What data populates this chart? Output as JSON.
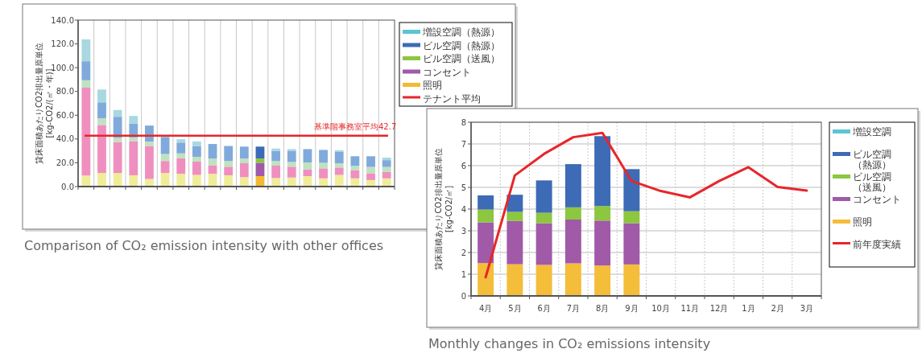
{
  "chart_data": [
    {
      "type": "bar",
      "stacked": true,
      "categories": [
        null,
        null,
        null,
        null,
        null,
        null,
        null,
        null,
        null,
        null,
        null,
        null,
        null,
        null,
        null,
        null,
        null,
        null,
        null,
        null
      ],
      "series": [
        {
          "name": "照明",
          "color": "#f4b932",
          "colors": [
            "#f0ec9a",
            "#f0ec9a",
            "#f0ec9a",
            "#f0ec9a",
            "#f0ec9a",
            "#f0ec9a",
            "#f0ec9a",
            "#f0ec9a",
            "#f0ec9a",
            "#f0ec9a",
            "#f0ec9a",
            "#f4b932",
            "#f0ec9a",
            "#f0ec9a",
            "#f0ec9a",
            "#f0ec9a",
            "#f0ec9a",
            "#f0ec9a",
            "#f0ec9a",
            "#f0ec9a"
          ],
          "values": [
            9.3,
            11.4,
            11.4,
            9.5,
            6.4,
            11.4,
            10.7,
            9.8,
            10.7,
            9.5,
            7.9,
            8.8,
            7.2,
            7.6,
            8.8,
            6.9,
            9.8,
            6.9,
            5.5,
            6.9
          ]
        },
        {
          "name": "コンセント",
          "color": "#a05aa8",
          "colors": [
            "#ef8fbf",
            "#ef8fbf",
            "#ef8fbf",
            "#ef8fbf",
            "#ef8fbf",
            "#ef8fbf",
            "#ef8fbf",
            "#ef8fbf",
            "#ef8fbf",
            "#ef8fbf",
            "#ef8fbf",
            "#a05aa8",
            "#ef8fbf",
            "#ef8fbf",
            "#ef8fbf",
            "#ef8fbf",
            "#ef8fbf",
            "#ef8fbf",
            "#ef8fbf",
            "#ef8fbf"
          ],
          "values": [
            73.9,
            40.4,
            26.0,
            28.7,
            27.7,
            10.1,
            13.1,
            11.2,
            7.2,
            7.2,
            11.7,
            11.2,
            10.4,
            9.1,
            5.7,
            8.4,
            6.2,
            6.9,
            5.7,
            5.5
          ]
        },
        {
          "name": "ビル空調（送風）",
          "color": "#8dc63f",
          "colors": [
            "#bfe2c0",
            "#bfe2c0",
            "#bfe2c0",
            "#bfe2c0",
            "#bfe2c0",
            "#bfe2c0",
            "#bfe2c0",
            "#bfe2c0",
            "#bfe2c0",
            "#bfe2c0",
            "#bfe2c0",
            "#8dc63f",
            "#bfe2c0",
            "#bfe2c0",
            "#bfe2c0",
            "#bfe2c0",
            "#bfe2c0",
            "#bfe2c0",
            "#bfe2c0",
            "#bfe2c0"
          ],
          "values": [
            6.2,
            5.7,
            3.6,
            3.1,
            3.8,
            5.9,
            4.1,
            4.0,
            5.7,
            4.8,
            4.0,
            3.6,
            3.9,
            4.0,
            5.8,
            4.7,
            3.6,
            3.6,
            5.3,
            4.1
          ]
        },
        {
          "name": "ビル空調（熱源）",
          "color": "#3d6bb5",
          "colors": [
            "#80aadb",
            "#80aadb",
            "#80aadb",
            "#80aadb",
            "#80aadb",
            "#80aadb",
            "#80aadb",
            "#80aadb",
            "#80aadb",
            "#80aadb",
            "#80aadb",
            "#3d6bb5",
            "#80aadb",
            "#80aadb",
            "#80aadb",
            "#80aadb",
            "#80aadb",
            "#80aadb",
            "#80aadb",
            "#80aadb"
          ],
          "values": [
            16.0,
            13.3,
            17.7,
            11.6,
            13.4,
            14.3,
            9.1,
            8.9,
            12.2,
            12.6,
            10.0,
            10.0,
            8.3,
            9.1,
            11.2,
            10.8,
            9.5,
            8.1,
            9.0,
            5.7
          ]
        },
        {
          "name": "増設空調（熱源）",
          "color": "#5bc5d3",
          "colors": [
            "#a8d8e0",
            "#a8d8e0",
            "#a8d8e0",
            "#a8d8e0",
            "#a8d8e0",
            "#a8d8e0",
            "#a8d8e0",
            "#a8d8e0",
            "#a8d8e0",
            "#a8d8e0",
            "#a8d8e0",
            "#5bc5d3",
            "#a8d8e0",
            "#a8d8e0",
            "#a8d8e0",
            "#a8d8e0",
            "#a8d8e0",
            "#a8d8e0",
            "#a8d8e0",
            "#a8d8e0"
          ],
          "values": [
            18.4,
            10.8,
            5.7,
            6.5,
            null,
            null,
            2.8,
            4.0,
            null,
            null,
            null,
            null,
            2.2,
            1.7,
            null,
            null,
            1.4,
            null,
            null,
            2.1
          ]
        }
      ],
      "ylim": [
        0,
        140
      ],
      "yticks": [
        {
          "value": 0,
          "label": "0.0"
        },
        {
          "value": 20,
          "label": "20.0"
        },
        {
          "value": 40,
          "label": "40.0"
        },
        {
          "value": 60,
          "label": "60.0"
        },
        {
          "value": 80,
          "label": "80.0"
        },
        {
          "value": 100,
          "label": "100.0"
        },
        {
          "value": 120,
          "label": "120.0"
        },
        {
          "value": 140,
          "label": "140.0"
        }
      ],
      "ylabel": "貸床面積あたりCO2排出量原単位[kg-CO2/(㎡・年)]",
      "grid": "x",
      "legend": "right",
      "tick_labels": "y",
      "ref_lines": [
        {
          "axis": "y",
          "value": 42.7,
          "label": "テナント平均",
          "color": "#e8262a"
        }
      ],
      "annotations": [
        {
          "text": "基準階事務室平均42.7",
          "y": 42.7
        },
        "Comparison of CO₂ emission intensity with other offices"
      ]
    },
    {
      "type": "bar",
      "stacked": true,
      "categories": [
        "4月",
        "5月",
        "6月",
        "7月",
        "8月",
        "9月",
        "10月",
        "11月",
        "12月",
        "1月",
        "2月",
        "3月"
      ],
      "series": [
        {
          "name": "照明",
          "color": "#f4bd3a",
          "values": [
            1.51,
            1.46,
            1.43,
            1.5,
            1.4,
            1.45,
            null,
            null,
            null,
            null,
            null,
            null
          ]
        },
        {
          "name": "コンセント",
          "color": "#a05aa8",
          "values": [
            1.88,
            1.99,
            1.92,
            2.02,
            2.07,
            1.9,
            null,
            null,
            null,
            null,
            null,
            null
          ]
        },
        {
          "name": "ビル空調（送風）",
          "color": "#8dc63f",
          "values": [
            0.59,
            0.42,
            0.48,
            0.56,
            0.67,
            0.55,
            null,
            null,
            null,
            null,
            null,
            null
          ]
        },
        {
          "name": "ビル空調（熱源）",
          "color": "#3d6bb5",
          "values": [
            0.65,
            0.79,
            1.49,
            1.99,
            3.22,
            1.94,
            null,
            null,
            null,
            null,
            null,
            null
          ]
        },
        {
          "name": "増設空調",
          "color": "#5bc5d3",
          "values": [
            null,
            null,
            null,
            null,
            null,
            null,
            null,
            null,
            null,
            null,
            null,
            null
          ]
        },
        {
          "name": "前年度実績",
          "type": "line",
          "color": "#e8262a",
          "values": [
            0.86,
            5.55,
            6.54,
            7.31,
            7.51,
            5.29,
            4.83,
            4.54,
            5.29,
            5.93,
            5.02,
            4.85
          ]
        }
      ],
      "ylim": [
        0,
        8
      ],
      "yticks": [
        0,
        1,
        2,
        3,
        4,
        5,
        6,
        7,
        8
      ],
      "ylabel": "貸床面積あたりCO2排出量原単位[kg-CO2/㎡]",
      "grid": true,
      "legend": "right",
      "annotations": [
        "Monthly changes in CO₂ emissions intensity"
      ]
    }
  ]
}
